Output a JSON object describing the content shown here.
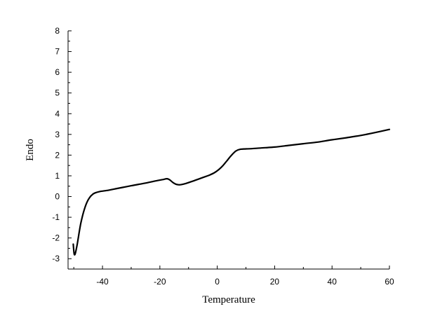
{
  "chart_data": {
    "type": "line",
    "xlabel": "Temperature",
    "ylabel": "Endo",
    "xlim": [
      -52,
      60
    ],
    "ylim": [
      -3.5,
      8
    ],
    "x_ticks": [
      -40,
      -20,
      0,
      20,
      40,
      60
    ],
    "y_ticks": [
      -3,
      -2,
      -1,
      0,
      1,
      2,
      3,
      4,
      5,
      6,
      7,
      8
    ],
    "grid": false,
    "legend": "none",
    "series": [
      {
        "color": "#000000",
        "x": [
          -50.2,
          -49.9,
          -49.6,
          -49.3,
          -48.8,
          -48.2,
          -47.5,
          -46.5,
          -45.5,
          -44.5,
          -43.5,
          -42.5,
          -41.0,
          -39.0,
          -36.0,
          -33.0,
          -30.0,
          -27.0,
          -24.0,
          -21.0,
          -19.0,
          -17.5,
          -16.5,
          -15.5,
          -14.5,
          -13.5,
          -12.5,
          -11.0,
          -9.0,
          -7.0,
          -5.0,
          -3.0,
          -1.0,
          0.5,
          2.0,
          3.5,
          5.0,
          6.5,
          8.0,
          10.0,
          12.0,
          15.0,
          20.0,
          25.0,
          30.0,
          35.0,
          40.0,
          45.0,
          50.0,
          55.0,
          60.0
        ],
        "y": [
          -2.3,
          -2.75,
          -2.8,
          -2.65,
          -2.3,
          -1.8,
          -1.25,
          -0.7,
          -0.3,
          -0.05,
          0.1,
          0.18,
          0.24,
          0.28,
          0.36,
          0.44,
          0.52,
          0.6,
          0.68,
          0.77,
          0.82,
          0.86,
          0.8,
          0.68,
          0.6,
          0.57,
          0.58,
          0.63,
          0.72,
          0.82,
          0.92,
          1.02,
          1.15,
          1.3,
          1.5,
          1.75,
          2.0,
          2.2,
          2.28,
          2.3,
          2.31,
          2.34,
          2.39,
          2.47,
          2.55,
          2.63,
          2.74,
          2.84,
          2.95,
          3.09,
          3.24
        ]
      }
    ]
  }
}
